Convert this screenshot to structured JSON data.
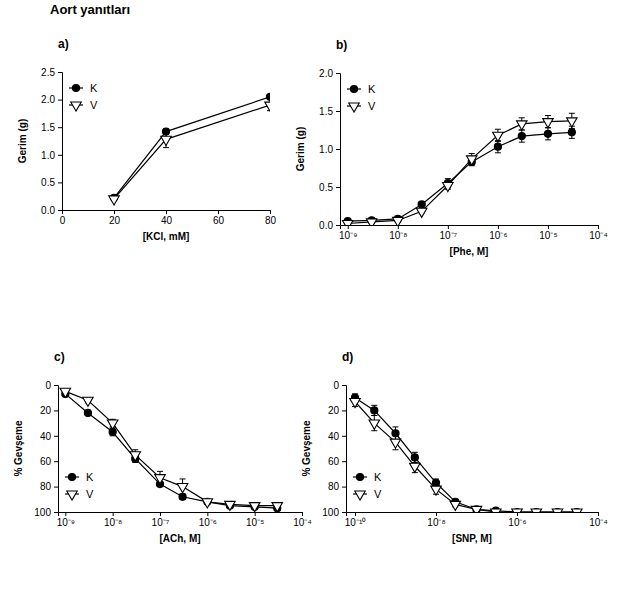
{
  "title": "Aort yanıtları",
  "chart_data": [
    {
      "type": "line",
      "title": "a)",
      "x_label": "[KCl, mM]",
      "y_label": "Gerim (g)",
      "x": [
        20,
        40,
        80
      ],
      "xlim": [
        0,
        80
      ],
      "xticks": [
        0,
        20,
        40,
        60,
        80
      ],
      "ylim": [
        0,
        2.5
      ],
      "yticks": [
        {
          "value": 0,
          "label": "0.0"
        },
        0.5,
        {
          "value": 1,
          "label": "1.0"
        },
        1.5,
        {
          "value": 2,
          "label": "2.0"
        },
        2.5
      ],
      "legend": "upper left",
      "series": [
        {
          "name": "K",
          "color": "#000000",
          "marker": "circle",
          "line_style": "solid",
          "values": [
            0.22,
            1.42,
            2.05
          ],
          "error": [
            0.02,
            0.05,
            0.04
          ]
        },
        {
          "name": "V",
          "color": "#000000",
          "marker": "triangle-down-open",
          "line_style": "solid",
          "values": [
            0.2,
            1.28,
            1.9
          ],
          "error": [
            0.03,
            0.15,
            0.1
          ]
        }
      ]
    },
    {
      "type": "line",
      "title": "b)",
      "x_label": "[Phe, M]",
      "y_label": "Gerim (g)",
      "log": "x",
      "x": [
        1e-09,
        3e-09,
        1e-08,
        3e-08,
        1e-07,
        3e-07,
        1e-06,
        3e-06,
        1e-05,
        3e-05
      ],
      "xlim": [
        7e-10,
        0.0001
      ],
      "xticks": [
        {
          "value": 1e-09,
          "label": "10⁻⁹"
        },
        {
          "value": 1e-08,
          "label": "10⁻⁸"
        },
        {
          "value": 1e-07,
          "label": "10⁻⁷"
        },
        {
          "value": 1e-06,
          "label": "10⁻⁶"
        },
        {
          "value": 1e-05,
          "label": "10⁻⁵"
        },
        {
          "value": 0.0001,
          "label": "10⁻⁴"
        }
      ],
      "ylim": [
        0,
        2
      ],
      "yticks": [
        {
          "value": 0,
          "label": "0.0"
        },
        0.5,
        {
          "value": 1,
          "label": "1.0"
        },
        1.5,
        {
          "value": 2,
          "label": "2.0"
        }
      ],
      "legend": "upper left",
      "series": [
        {
          "name": "K",
          "color": "#000000",
          "marker": "circle",
          "line_style": "solid",
          "values": [
            0.05,
            0.06,
            0.08,
            0.27,
            0.55,
            0.83,
            1.03,
            1.17,
            1.2,
            1.22
          ],
          "error": [
            0.02,
            0.02,
            0.02,
            0.03,
            0.06,
            0.05,
            0.08,
            0.08,
            0.08,
            0.08
          ]
        },
        {
          "name": "V",
          "color": "#000000",
          "marker": "triangle-down-open",
          "line_style": "solid",
          "values": [
            0.02,
            0.04,
            0.06,
            0.18,
            0.52,
            0.87,
            1.18,
            1.33,
            1.36,
            1.37
          ],
          "error": [
            0.02,
            0.02,
            0.02,
            0.02,
            0.05,
            0.07,
            0.08,
            0.08,
            0.08,
            0.1
          ]
        }
      ]
    },
    {
      "type": "line",
      "title": "c)",
      "x_label": "[ACh, M]",
      "y_label": "% Gevşeme",
      "log": "x",
      "x": [
        1e-09,
        3e-09,
        1e-08,
        3e-08,
        1e-07,
        3e-07,
        1e-06,
        3e-06,
        1e-05,
        3e-05
      ],
      "xlim": [
        7e-10,
        0.0001
      ],
      "xticks": [
        {
          "value": 1e-09,
          "label": "10⁻⁹"
        },
        {
          "value": 1e-08,
          "label": "10⁻⁸"
        },
        {
          "value": 1e-07,
          "label": "10⁻⁷"
        },
        {
          "value": 1e-06,
          "label": "10⁻⁶"
        },
        {
          "value": 1e-05,
          "label": "10⁻⁵"
        },
        {
          "value": 0.0001,
          "label": "10⁻⁴"
        }
      ],
      "ylim": [
        100,
        0
      ],
      "yticks": [
        0,
        20,
        40,
        60,
        80,
        100
      ],
      "legend": "lower left",
      "series": [
        {
          "name": "K",
          "color": "#000000",
          "marker": "circle",
          "line_style": "solid",
          "values": [
            7,
            22,
            37,
            58,
            78,
            88,
            92,
            95,
            96,
            97
          ],
          "error": [
            1,
            1,
            3,
            3,
            2,
            2,
            1,
            1,
            1,
            1
          ]
        },
        {
          "name": "V",
          "color": "#000000",
          "marker": "triangle-down-open",
          "line_style": "solid",
          "values": [
            5,
            12,
            30,
            55,
            73,
            80,
            92,
            94,
            95,
            95
          ],
          "error": [
            1,
            2,
            3,
            4,
            5,
            6,
            1,
            1,
            1,
            1
          ]
        }
      ]
    },
    {
      "type": "line",
      "title": "d)",
      "x_label": "[SNP, M]",
      "y_label": "% Gevşeme",
      "log": "x",
      "x": [
        1e-10,
        3e-10,
        1e-09,
        3e-09,
        1e-08,
        3e-08,
        1e-07,
        3e-07,
        1e-06,
        3e-06,
        1e-05,
        3e-05
      ],
      "xlim": [
        6e-11,
        0.0001
      ],
      "xticks": [
        {
          "value": 1e-10,
          "label": "10⁻¹⁰"
        },
        {
          "value": 1e-08,
          "label": "10⁻⁸"
        },
        {
          "value": 1e-06,
          "label": "10⁻⁶"
        },
        {
          "value": 0.0001,
          "label": "10⁻⁴"
        }
      ],
      "ylim": [
        100,
        0
      ],
      "yticks": [
        0,
        20,
        40,
        60,
        80,
        100
      ],
      "legend": "lower left",
      "series": [
        {
          "name": "K",
          "color": "#000000",
          "marker": "circle",
          "line_style": "solid",
          "values": [
            10,
            20,
            38,
            57,
            77,
            92,
            98,
            99,
            100,
            100,
            100,
            100
          ],
          "error": [
            3,
            4,
            5,
            4,
            3,
            2,
            1,
            0.5,
            0.5,
            0.5,
            0.5,
            0.5
          ]
        },
        {
          "name": "V",
          "color": "#000000",
          "marker": "triangle-down-open",
          "line_style": "solid",
          "values": [
            13,
            30,
            45,
            64,
            82,
            94,
            98,
            100,
            100,
            100,
            100,
            100
          ],
          "error": [
            4,
            6,
            6,
            5,
            4,
            2,
            1,
            0.5,
            0.5,
            0.5,
            0.5,
            0.5
          ]
        }
      ]
    }
  ]
}
